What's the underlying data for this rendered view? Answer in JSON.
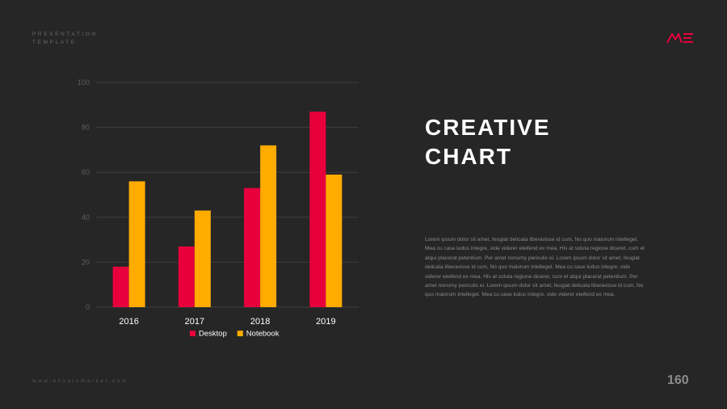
{
  "header": {
    "line1": "PRESENTATION",
    "line2": "TEMPLATE",
    "logo_icon": "me-logo"
  },
  "title": {
    "line1": "CREATIVE",
    "line2": "CHART"
  },
  "body_text": "Lorem ipsum dolor sit amet, feugiat delicata liberavisse id cum, No quo maiorum intelleget. Mea cu case ludus integre, vide viderer eleifend ex mea. His at soluta regione diceret, cum et atqui placerat petentium. Per amet nonumy periculis ei. Lorem ipsum dolor sit amet, feugiat delicata liberavisse id cum, No quo maiorum intelleget. Mea cu case ludus integre, vide viderer eleifend ex mea. His at soluta regione diceret, cum et atqui placerat petentium. Per amet nonumy periculis ei. Lorem ipsum dolor sit amet, feugiat delicata liberavisse id cum, No quo maiorum intelleget. Mea cu case ludus integre, vide viderer eleifend ex mea.",
  "footer": {
    "url": "www.envatomarket.com",
    "page_number": "160"
  },
  "colors": {
    "background": "#262626",
    "desktop": "#e8003d",
    "notebook": "#ffab00",
    "grid": "#3d3d3d",
    "tick": "#5e5e5e",
    "category_label": "#ffffff",
    "legend_text": "#ffffff"
  },
  "chart_data": {
    "type": "bar",
    "title": "",
    "xlabel": "",
    "ylabel": "",
    "categories": [
      "2016",
      "2017",
      "2018",
      "2019"
    ],
    "series": [
      {
        "name": "Desktop",
        "values": [
          18,
          27,
          53,
          87
        ]
      },
      {
        "name": "Notebook",
        "values": [
          56,
          43,
          72,
          59
        ]
      }
    ],
    "ylim": [
      0,
      100
    ],
    "yticks": [
      0,
      20,
      40,
      60,
      80,
      100
    ],
    "grid": true,
    "legend": "bottom-center"
  }
}
